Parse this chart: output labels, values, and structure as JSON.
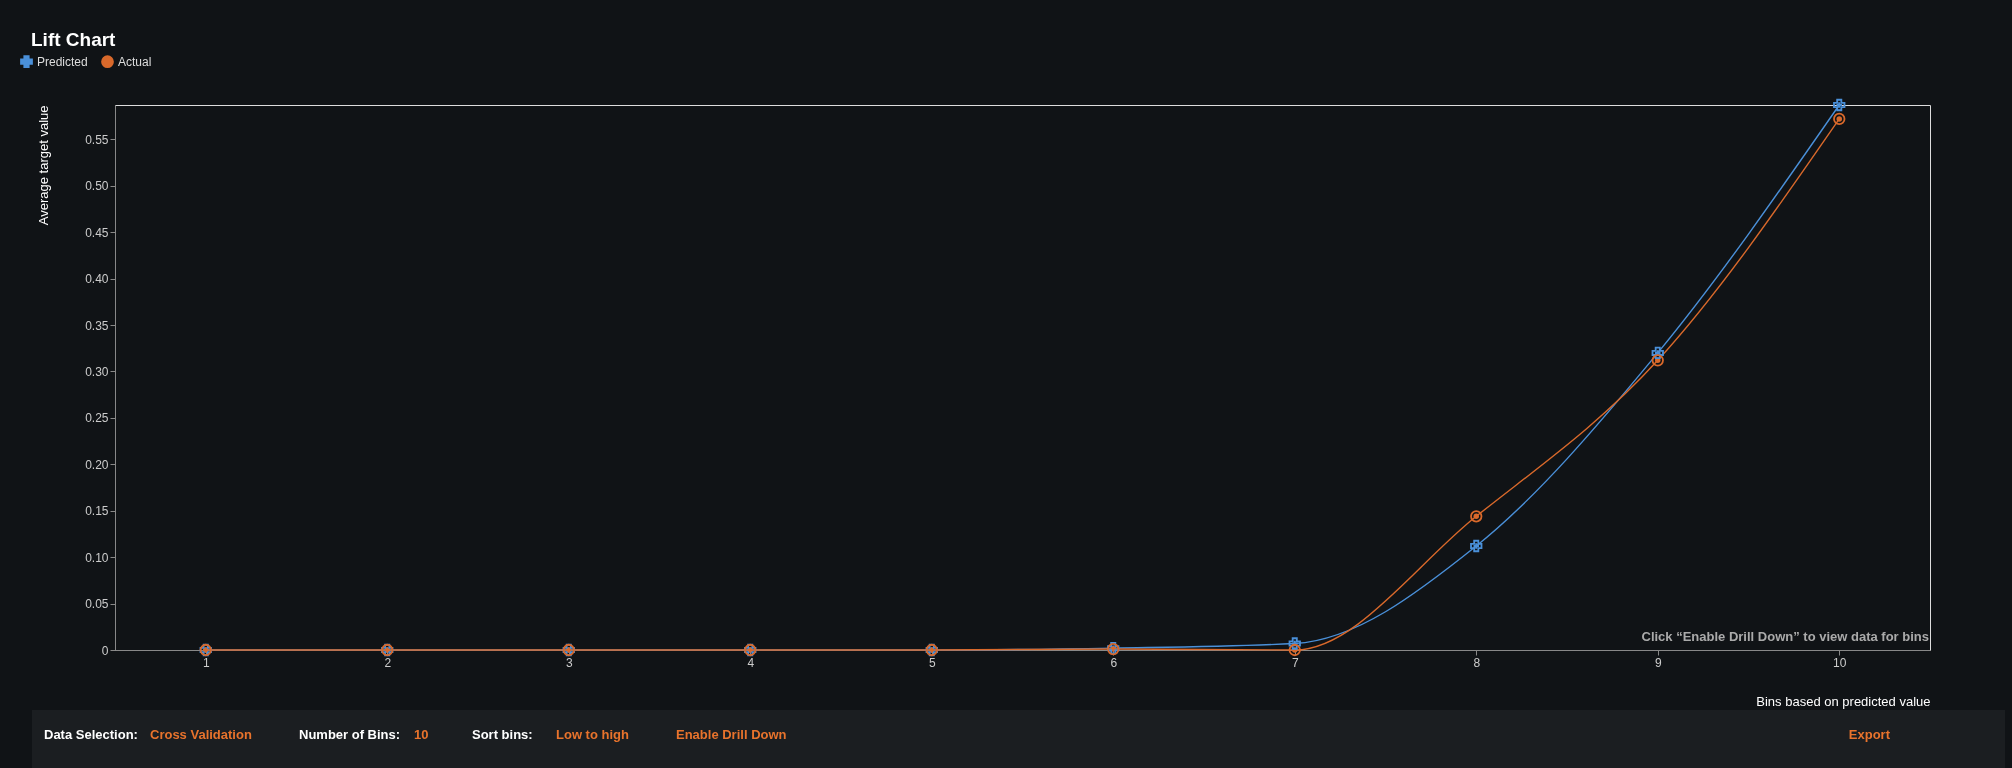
{
  "chart_data": {
    "type": "line",
    "title": "Lift Chart",
    "xlabel": "Bins based on predicted value",
    "ylabel": "Average target value",
    "categories": [
      "1",
      "2",
      "3",
      "4",
      "5",
      "6",
      "7",
      "8",
      "9",
      "10"
    ],
    "series": [
      {
        "name": "Predicted",
        "color": "#4a90d9",
        "marker": "cross",
        "values": [
          0,
          0,
          0,
          0,
          0,
          0.002,
          0.007,
          0.112,
          0.32,
          0.587
        ]
      },
      {
        "name": "Actual",
        "color": "#d9692b",
        "marker": "circle",
        "values": [
          0,
          0,
          0,
          0,
          0,
          0.001,
          0,
          0.144,
          0.312,
          0.572
        ]
      }
    ],
    "ylim": [
      0,
      0.587
    ],
    "yticks": [
      0,
      0.05,
      {
        "value": 0.1,
        "label": "0.10"
      },
      0.15,
      {
        "value": 0.2,
        "label": "0.20"
      },
      0.25,
      {
        "value": 0.3,
        "label": "0.30"
      },
      0.35,
      {
        "value": 0.4,
        "label": "0.40"
      },
      0.45,
      {
        "value": 0.5,
        "label": "0.50"
      },
      0.55
    ],
    "grid": false,
    "legend": "top left",
    "line_style": "solid",
    "annotations": [
      "Click “Enable Drill Down” to view data for bins",
      "Data Selection:",
      "Cross Validation",
      "Number of Bins:",
      "10",
      "Sort bins:",
      "Low to high",
      "Enable Drill Down",
      "Export"
    ]
  }
}
